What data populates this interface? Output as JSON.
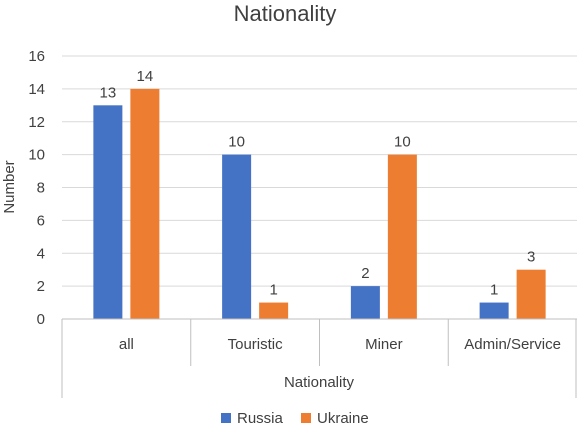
{
  "chart_data": {
    "type": "bar",
    "title": "Nationality",
    "xlabel": "Nationality",
    "ylabel": "Number",
    "categories": [
      "all",
      "Touristic",
      "Miner",
      "Admin/Service"
    ],
    "series": [
      {
        "name": "Russia",
        "values": [
          13,
          10,
          2,
          1
        ],
        "color": "#4472C4"
      },
      {
        "name": "Ukraine",
        "values": [
          14,
          1,
          10,
          3
        ],
        "color": "#ED7D31"
      }
    ],
    "ylim": [
      0,
      16
    ],
    "yticks": [
      0,
      2,
      4,
      6,
      8,
      10,
      12,
      14,
      16
    ],
    "grid": true,
    "legend_position": "bottom",
    "data_labels": true
  }
}
